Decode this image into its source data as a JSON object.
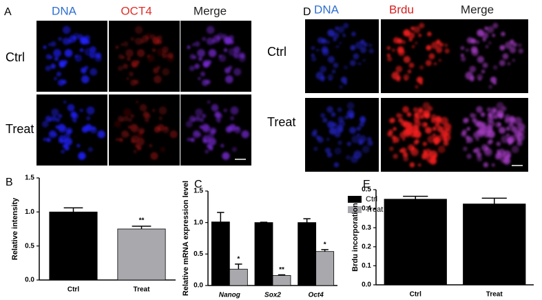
{
  "images": [
    {
      "panel": "A",
      "columns": [
        "DNA",
        "OCT4",
        "Merge"
      ],
      "rows": [
        "Ctrl",
        "Treat"
      ],
      "column_colors": [
        "#2f6fd0",
        "#e0302a",
        "#222222"
      ]
    },
    {
      "panel": "D",
      "columns": [
        "DNA",
        "Brdu",
        "Merge"
      ],
      "rows": [
        "Ctrl",
        "Treat"
      ],
      "column_colors": [
        "#2f6fd0",
        "#d42020",
        "#222222"
      ]
    }
  ],
  "chart_data": [
    {
      "type": "bar",
      "panel": "B",
      "ylabel": "Relative intensity",
      "categories": [
        "Ctrl",
        "Treat"
      ],
      "series": [
        {
          "name": "Ctrl",
          "color": "#000000",
          "values": [
            1.0,
            null
          ],
          "errors": [
            0.06,
            null
          ]
        },
        {
          "name": "Treat",
          "color": "#a8a8ad",
          "values": [
            null,
            0.75
          ],
          "errors": [
            null,
            0.04
          ]
        }
      ],
      "annotations": [
        {
          "x": "Treat",
          "text": "**"
        }
      ],
      "ylim": [
        0,
        1.5
      ],
      "yticks": [
        {
          "value": 0,
          "label": "0.0"
        },
        0.5,
        {
          "value": 1,
          "label": "1.0"
        },
        1.5
      ],
      "legend": false,
      "italic_categories": false
    },
    {
      "type": "bar",
      "panel": "C",
      "ylabel": "Relative mRNA expression level",
      "categories": [
        "Nanog",
        "Sox2",
        "Oct4"
      ],
      "series": [
        {
          "name": "Ctrl",
          "color": "#000000",
          "values": [
            1.01,
            1.0,
            1.0
          ],
          "errors": [
            0.15,
            0.005,
            0.06
          ]
        },
        {
          "name": "Treat",
          "color": "#a8a8ad",
          "values": [
            0.26,
            0.16,
            0.54
          ],
          "errors": [
            0.08,
            0.01,
            0.03
          ],
          "annotations": [
            "*",
            "**",
            "*"
          ]
        }
      ],
      "ylim": [
        0,
        1.5
      ],
      "yticks": [
        {
          "value": 0,
          "label": "0.0"
        },
        0.5,
        {
          "value": 1,
          "label": "1.0"
        },
        1.5
      ],
      "legend": "upper right",
      "italic_categories": true
    },
    {
      "type": "bar",
      "panel": "E",
      "ylabel": "Brdu incorporation",
      "categories": [
        "Ctrl",
        "Treat"
      ],
      "series": [
        {
          "name": "Ctrl",
          "color": "#000000",
          "values": [
            0.45,
            null
          ],
          "errors": [
            0.015,
            null
          ]
        },
        {
          "name": "Treat",
          "color": "#000000",
          "values": [
            null,
            0.425
          ],
          "errors": [
            null,
            0.03
          ]
        }
      ],
      "ylim": [
        0,
        0.5
      ],
      "yticks": [
        {
          "value": 0,
          "label": "0.0"
        },
        0.1,
        0.2,
        0.3,
        0.4,
        0.5
      ],
      "legend": false,
      "italic_categories": false
    }
  ]
}
